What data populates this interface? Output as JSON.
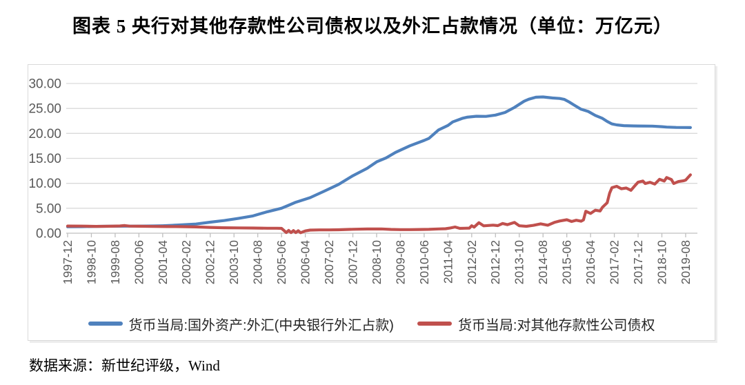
{
  "title": "图表 5  央行对其他存款性公司债权以及外汇占款情况（单位：万亿元）",
  "source": "数据来源：新世纪评级，Wind",
  "chart_data": {
    "type": "line",
    "title": "央行对其他存款性公司债权以及外汇占款情况",
    "unit": "万亿元",
    "grid": true,
    "legend_position": "bottom",
    "ylim": [
      0,
      30
    ],
    "y_ticks": [
      30,
      25,
      20,
      15,
      10,
      5,
      0
    ],
    "y_tick_labels": [
      "30.00",
      "25.00",
      "20.00",
      "15.00",
      "10.00",
      "5.00",
      "0.00"
    ],
    "x_start": "1997-12",
    "x_tick_interval_months": 10,
    "x_tick_labels": [
      "1997-12",
      "1998-10",
      "1999-08",
      "2000-06",
      "2001-04",
      "2002-02",
      "2002-12",
      "2003-10",
      "2004-08",
      "2005-06",
      "2006-04",
      "2007-02",
      "2007-12",
      "2008-10",
      "2009-08",
      "2010-06",
      "2011-04",
      "2012-02",
      "2012-12",
      "2013-10",
      "2014-08",
      "2015-06",
      "2016-04",
      "2017-02",
      "2017-12",
      "2018-10",
      "2019-08"
    ],
    "x_note": "series points are [months_since_1997-12, value]",
    "colors": {
      "fx": "#4F81BD",
      "claims": "#C0504D",
      "grid": "#d9d9d9",
      "axis": "#bfbfbf",
      "tick_text": "#595959"
    },
    "series": [
      {
        "name": "货币当局:国外资产:外汇(中央银行外汇占款)",
        "color": "#4F81BD",
        "points": [
          [
            0,
            1.28
          ],
          [
            6,
            1.32
          ],
          [
            12,
            1.37
          ],
          [
            18,
            1.39
          ],
          [
            24,
            1.41
          ],
          [
            30,
            1.42
          ],
          [
            36,
            1.45
          ],
          [
            40,
            1.5
          ],
          [
            44,
            1.58
          ],
          [
            48,
            1.69
          ],
          [
            54,
            1.84
          ],
          [
            60,
            2.21
          ],
          [
            66,
            2.54
          ],
          [
            72,
            2.98
          ],
          [
            78,
            3.47
          ],
          [
            84,
            4.3
          ],
          [
            88,
            4.75
          ],
          [
            90,
            5.0
          ],
          [
            93,
            5.6
          ],
          [
            96,
            6.21
          ],
          [
            102,
            7.12
          ],
          [
            108,
            8.44
          ],
          [
            114,
            9.77
          ],
          [
            120,
            11.52
          ],
          [
            126,
            13.0
          ],
          [
            130,
            14.3
          ],
          [
            134,
            15.1
          ],
          [
            138,
            16.2
          ],
          [
            144,
            17.51
          ],
          [
            150,
            18.6
          ],
          [
            152,
            19.0
          ],
          [
            156,
            20.68
          ],
          [
            160,
            21.6
          ],
          [
            162,
            22.3
          ],
          [
            166,
            23.0
          ],
          [
            168,
            23.24
          ],
          [
            172,
            23.44
          ],
          [
            176,
            23.4
          ],
          [
            180,
            23.67
          ],
          [
            184,
            24.2
          ],
          [
            188,
            25.2
          ],
          [
            192,
            26.43
          ],
          [
            194,
            26.85
          ],
          [
            197,
            27.25
          ],
          [
            200,
            27.3
          ],
          [
            204,
            27.1
          ],
          [
            207,
            27.0
          ],
          [
            209,
            26.8
          ],
          [
            211,
            26.3
          ],
          [
            213,
            25.7
          ],
          [
            216,
            24.85
          ],
          [
            219,
            24.4
          ],
          [
            222,
            23.6
          ],
          [
            225,
            23.0
          ],
          [
            227,
            22.4
          ],
          [
            229,
            21.9
          ],
          [
            231,
            21.7
          ],
          [
            234,
            21.55
          ],
          [
            238,
            21.5
          ],
          [
            240,
            21.48
          ],
          [
            246,
            21.45
          ],
          [
            250,
            21.35
          ],
          [
            252,
            21.26
          ],
          [
            256,
            21.2
          ],
          [
            260,
            21.18
          ],
          [
            262,
            21.17
          ]
        ]
      },
      {
        "name": "货币当局:对其他存款性公司债权",
        "color": "#C0504D",
        "points": [
          [
            0,
            1.44
          ],
          [
            6,
            1.42
          ],
          [
            12,
            1.37
          ],
          [
            18,
            1.4
          ],
          [
            22,
            1.45
          ],
          [
            24,
            1.54
          ],
          [
            26,
            1.42
          ],
          [
            30,
            1.4
          ],
          [
            36,
            1.36
          ],
          [
            42,
            1.33
          ],
          [
            48,
            1.31
          ],
          [
            54,
            1.26
          ],
          [
            60,
            1.16
          ],
          [
            66,
            1.09
          ],
          [
            72,
            1.06
          ],
          [
            78,
            1.03
          ],
          [
            84,
            1.0
          ],
          [
            88,
            0.99
          ],
          [
            90,
            0.97
          ],
          [
            91,
            0.55
          ],
          [
            92,
            0.14
          ],
          [
            93,
            0.55
          ],
          [
            94,
            0.12
          ],
          [
            95,
            0.52
          ],
          [
            96,
            0.13
          ],
          [
            97,
            0.5
          ],
          [
            98,
            0.1
          ],
          [
            100,
            0.45
          ],
          [
            102,
            0.62
          ],
          [
            106,
            0.66
          ],
          [
            110,
            0.67
          ],
          [
            114,
            0.69
          ],
          [
            120,
            0.79
          ],
          [
            126,
            0.85
          ],
          [
            132,
            0.86
          ],
          [
            136,
            0.76
          ],
          [
            140,
            0.72
          ],
          [
            144,
            0.72
          ],
          [
            148,
            0.75
          ],
          [
            152,
            0.78
          ],
          [
            156,
            0.86
          ],
          [
            159,
            0.9
          ],
          [
            161,
            1.05
          ],
          [
            163,
            1.25
          ],
          [
            165,
            0.97
          ],
          [
            167,
            1.0
          ],
          [
            169,
            1.02
          ],
          [
            170,
            1.5
          ],
          [
            171,
            1.22
          ],
          [
            173,
            2.1
          ],
          [
            175,
            1.48
          ],
          [
            177,
            1.55
          ],
          [
            179,
            1.62
          ],
          [
            181,
            1.52
          ],
          [
            183,
            1.95
          ],
          [
            185,
            1.72
          ],
          [
            188,
            2.15
          ],
          [
            190,
            1.5
          ],
          [
            193,
            1.38
          ],
          [
            196,
            1.58
          ],
          [
            199,
            1.88
          ],
          [
            202,
            1.6
          ],
          [
            205,
            2.2
          ],
          [
            207,
            2.45
          ],
          [
            210,
            2.7
          ],
          [
            212,
            2.35
          ],
          [
            214,
            2.6
          ],
          [
            216,
            2.4
          ],
          [
            217,
            2.66
          ],
          [
            218,
            4.4
          ],
          [
            220,
            3.95
          ],
          [
            222,
            4.6
          ],
          [
            224,
            4.45
          ],
          [
            225,
            5.2
          ],
          [
            227,
            6.1
          ],
          [
            228,
            8.0
          ],
          [
            229,
            9.13
          ],
          [
            231,
            9.4
          ],
          [
            233,
            8.9
          ],
          [
            235,
            9.05
          ],
          [
            237,
            8.6
          ],
          [
            239,
            9.7
          ],
          [
            240,
            10.22
          ],
          [
            242,
            10.45
          ],
          [
            243,
            9.95
          ],
          [
            245,
            10.2
          ],
          [
            247,
            9.85
          ],
          [
            249,
            10.8
          ],
          [
            251,
            10.45
          ],
          [
            252,
            11.15
          ],
          [
            254,
            10.75
          ],
          [
            255,
            9.95
          ],
          [
            257,
            10.35
          ],
          [
            259,
            10.5
          ],
          [
            260,
            10.65
          ],
          [
            262,
            11.7
          ]
        ]
      }
    ]
  }
}
